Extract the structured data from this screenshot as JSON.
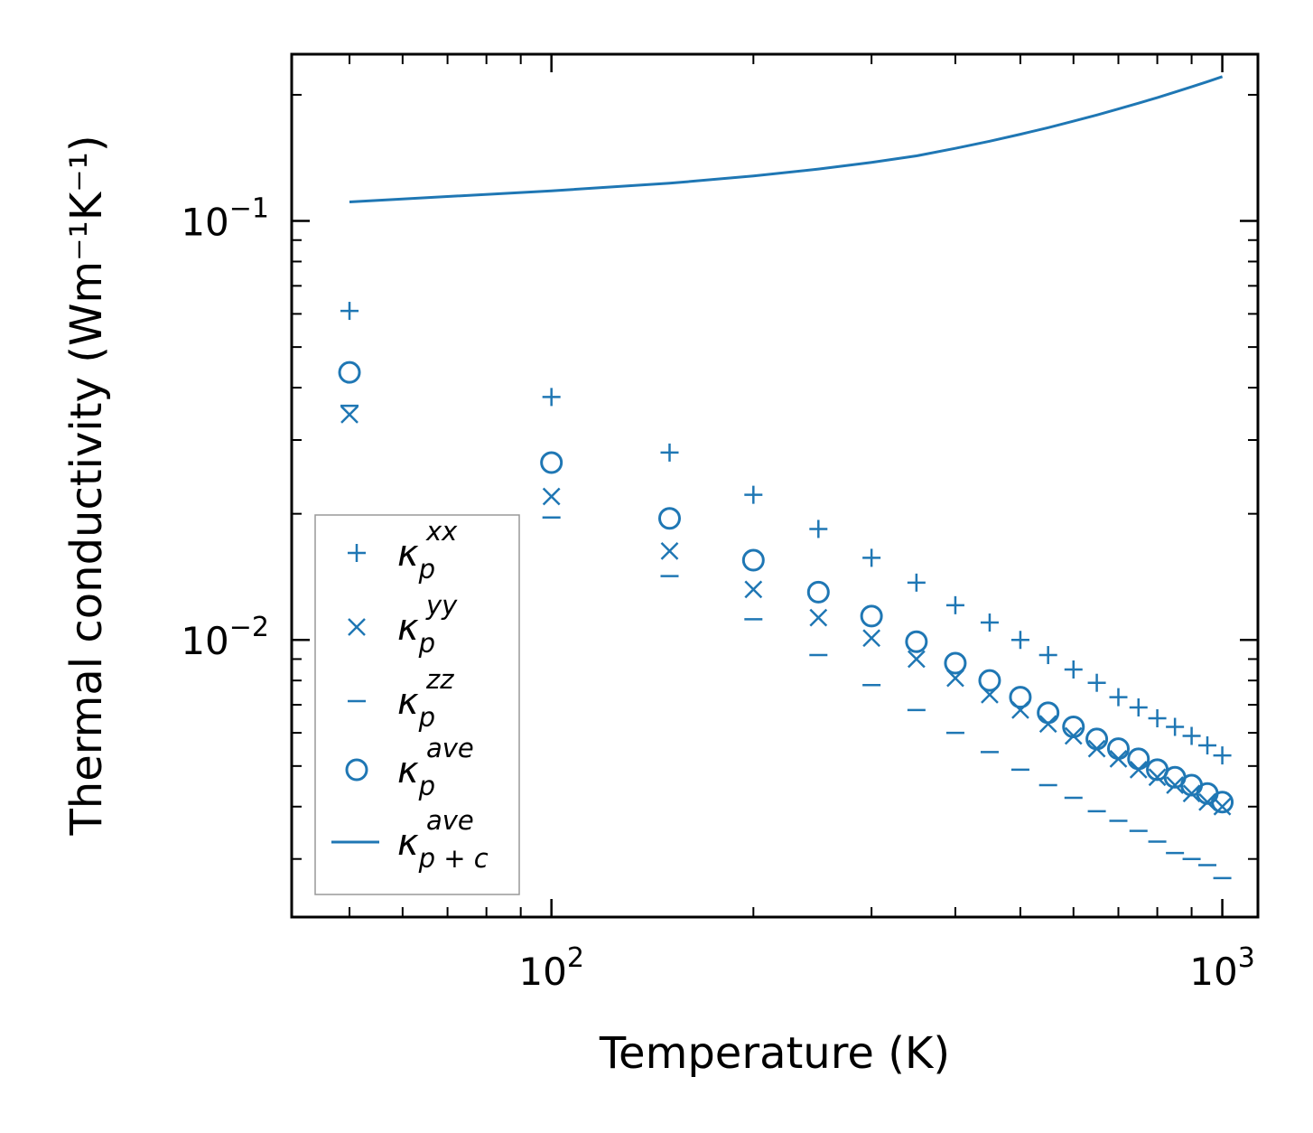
{
  "chart_data": {
    "type": "scatter",
    "xscale": "log",
    "yscale": "log",
    "xlabel": "Temperature (K)",
    "ylabel": "Thermal conductivity (Wm⁻¹K⁻¹)",
    "xlim": [
      41,
      1130
    ],
    "ylim": [
      0.00218,
      0.25
    ],
    "grid": false,
    "legend_position": "lower-left",
    "color": "#1f77b4",
    "x_tick_labels": [
      {
        "value": 100,
        "base": "10",
        "exp": "2"
      },
      {
        "value": 1000,
        "base": "10",
        "exp": "3"
      }
    ],
    "y_tick_labels": [
      {
        "value": 0.1,
        "base": "10",
        "exp": "−1"
      },
      {
        "value": 0.01,
        "base": "10",
        "exp": "−2"
      }
    ],
    "x": [
      50,
      100,
      150,
      200,
      250,
      300,
      350,
      400,
      450,
      500,
      550,
      600,
      650,
      700,
      750,
      800,
      850,
      900,
      950,
      1000
    ],
    "series": [
      {
        "name": "kp_xx",
        "label": {
          "base": "κ",
          "sub": "p",
          "sup": "xx"
        },
        "marker": "plus",
        "values": [
          0.061,
          0.038,
          0.028,
          0.0222,
          0.0184,
          0.0157,
          0.0137,
          0.0121,
          0.011,
          0.01,
          0.0092,
          0.0085,
          0.0079,
          0.0073,
          0.0069,
          0.0065,
          0.0062,
          0.0059,
          0.0056,
          0.0053
        ]
      },
      {
        "name": "kp_yy",
        "label": {
          "base": "κ",
          "sub": "p",
          "sup": "yy"
        },
        "marker": "x",
        "values": [
          0.0345,
          0.022,
          0.0163,
          0.0132,
          0.0113,
          0.0101,
          0.009,
          0.0081,
          0.0074,
          0.0068,
          0.0063,
          0.0059,
          0.0055,
          0.0052,
          0.0049,
          0.0047,
          0.0045,
          0.0043,
          0.0041,
          0.004
        ]
      },
      {
        "name": "kp_zz",
        "label": {
          "base": "κ",
          "sub": "p",
          "sup": "zz"
        },
        "marker": "hline",
        "values": [
          0.0362,
          0.0196,
          0.0142,
          0.0112,
          0.0092,
          0.0078,
          0.0068,
          0.006,
          0.0054,
          0.0049,
          0.0045,
          0.0042,
          0.0039,
          0.0037,
          0.0035,
          0.0033,
          0.0031,
          0.003,
          0.0029,
          0.0027
        ]
      },
      {
        "name": "kp_ave",
        "label": {
          "base": "κ",
          "sub": "p",
          "sup": "ave"
        },
        "marker": "circle",
        "values": [
          0.0435,
          0.0265,
          0.0195,
          0.0155,
          0.013,
          0.0114,
          0.0099,
          0.0088,
          0.008,
          0.0073,
          0.0067,
          0.0062,
          0.0058,
          0.0055,
          0.0052,
          0.0049,
          0.0047,
          0.0045,
          0.0043,
          0.0041
        ]
      },
      {
        "name": "kpc_ave",
        "label": {
          "base": "κ",
          "sub": "p + c",
          "sup": "ave"
        },
        "marker": "line",
        "values": [
          0.111,
          0.118,
          0.123,
          0.128,
          0.133,
          0.138,
          0.143,
          0.149,
          0.155,
          0.161,
          0.167,
          0.173,
          0.179,
          0.185,
          0.191,
          0.197,
          0.203,
          0.209,
          0.215,
          0.221
        ]
      }
    ]
  }
}
